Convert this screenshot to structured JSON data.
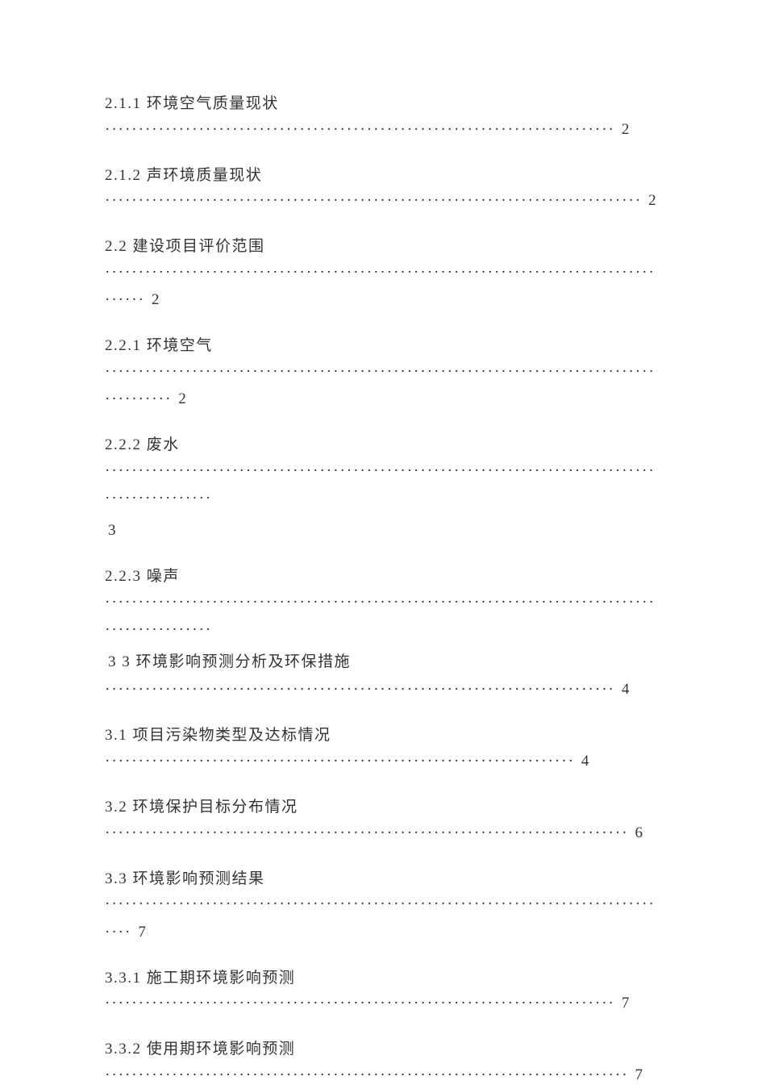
{
  "toc": {
    "text_color": "#333333",
    "background_color": "#ffffff",
    "font_size_pt": 14,
    "entries": [
      {
        "number": "2.1.1",
        "title": "环境空气质量现状",
        "page": "2",
        "leader_dots": 76
      },
      {
        "number": "2.1.2",
        "title": "声环境质量现状",
        "page": "2",
        "leader_dots": 80
      },
      {
        "number": "2.2",
        "title": "建设项目评价范围",
        "page": "2",
        "leader_dots": 88
      },
      {
        "number": "2.2.1",
        "title": "环境空气",
        "page": "2",
        "leader_dots": 92
      },
      {
        "number": "2.2.2",
        "title": "废水",
        "page": "3",
        "leader_dots": 98,
        "page_wraps": true
      },
      {
        "number": "2.2.3",
        "title": "噪声",
        "page": "3",
        "leader_dots": 98,
        "merge_next_title": true,
        "next_title_text": "3 环境影响预测分析及环保措施",
        "next_page": "4",
        "next_leader_dots": 76
      },
      {
        "number": "3.1",
        "title": "项目污染物类型及达标情况",
        "page": "4",
        "leader_dots": 70
      },
      {
        "number": "3.2",
        "title": "环境保护目标分布情况",
        "page": "6",
        "leader_dots": 78
      },
      {
        "number": "3.3",
        "title": "环境影响预测结果",
        "page": "7",
        "leader_dots": 86
      },
      {
        "number": "3.3.1",
        "title": "施工期环境影响预测",
        "page": "7",
        "leader_dots": 76
      },
      {
        "number": "3.3.2",
        "title": "使用期环境影响预测",
        "page": "7",
        "leader_dots": 78
      }
    ]
  }
}
